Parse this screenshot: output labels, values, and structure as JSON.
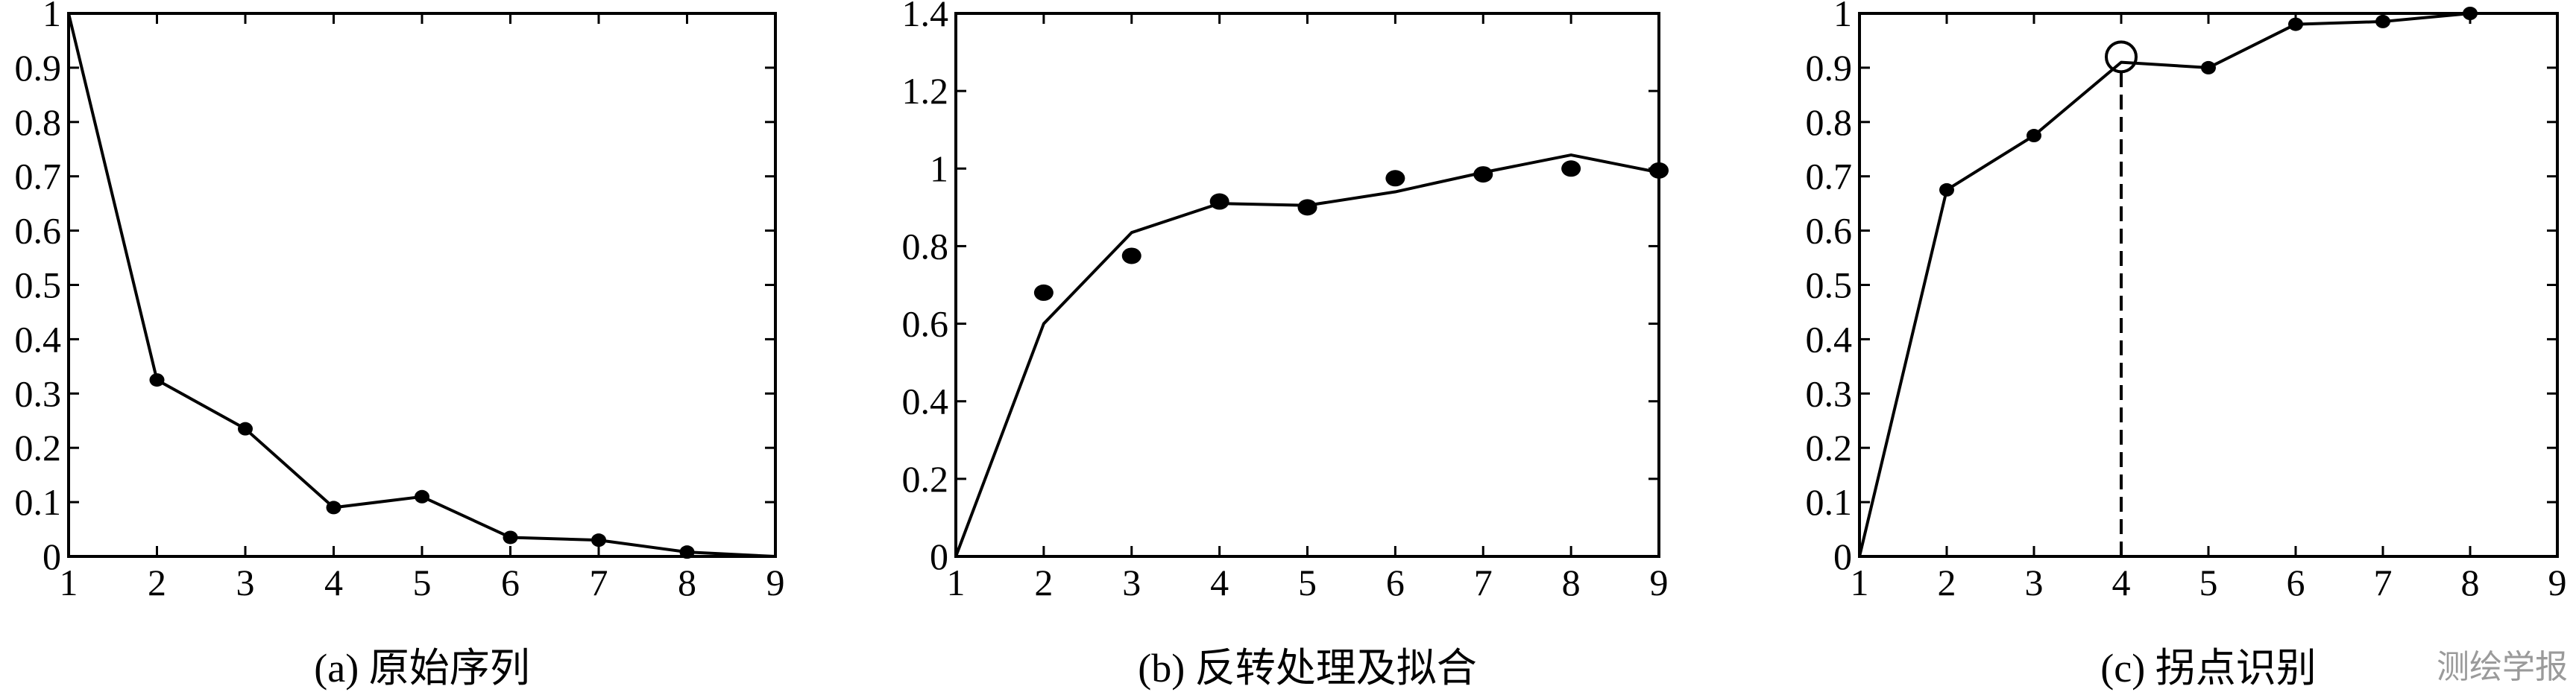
{
  "chart_data": [
    {
      "type": "line",
      "caption": "(a) 原始序列",
      "x": [
        1,
        2,
        3,
        4,
        5,
        6,
        7,
        8,
        9
      ],
      "series": [
        {
          "values": [
            1.0,
            0.325,
            0.235,
            0.09,
            0.11,
            0.035,
            0.03,
            0.008,
            0.0
          ],
          "markers": [
            false,
            true,
            true,
            true,
            true,
            true,
            true,
            true,
            false
          ]
        }
      ],
      "xlim": [
        1,
        9
      ],
      "ylim": [
        0,
        1
      ],
      "xticks": [
        "1",
        "2",
        "3",
        "4",
        "5",
        "6",
        "7",
        "8",
        "9"
      ],
      "yticks": [
        "0",
        "0.1",
        "0.2",
        "0.3",
        "0.4",
        "0.5",
        "0.6",
        "0.7",
        "0.8",
        "0.9",
        "1"
      ],
      "grid": false
    },
    {
      "type": "line+scatter",
      "caption": "(b) 反转处理及拟合",
      "x": [
        1,
        2,
        3,
        4,
        5,
        6,
        7,
        8,
        9
      ],
      "series": [
        {
          "kind": "line",
          "values": [
            0.0,
            0.6,
            0.835,
            0.91,
            0.905,
            0.94,
            0.99,
            1.035,
            0.99
          ]
        },
        {
          "kind": "scatter",
          "x": [
            2,
            3,
            4,
            5,
            6,
            7,
            8,
            9
          ],
          "values": [
            0.68,
            0.775,
            0.915,
            0.9,
            0.975,
            0.985,
            1.0,
            0.995
          ]
        }
      ],
      "xlim": [
        1,
        9
      ],
      "ylim": [
        0,
        1.4
      ],
      "xticks": [
        "1",
        "2",
        "3",
        "4",
        "5",
        "6",
        "7",
        "8",
        "9"
      ],
      "yticks": [
        "0",
        "0.2",
        "0.4",
        "0.6",
        "0.8",
        "1",
        "1.2",
        "1.4"
      ],
      "grid": false
    },
    {
      "type": "line",
      "caption": "(c) 拐点识别",
      "x": [
        1,
        2,
        3,
        4,
        5,
        6,
        7,
        8
      ],
      "series": [
        {
          "values": [
            0.0,
            0.675,
            0.775,
            0.91,
            0.9,
            0.98,
            0.985,
            1.0
          ],
          "markers": [
            false,
            true,
            true,
            false,
            true,
            true,
            true,
            true
          ]
        }
      ],
      "inflection_point": {
        "x": 4,
        "y": 0.92
      },
      "xlim": [
        1,
        9
      ],
      "ylim": [
        0,
        1
      ],
      "xticks": [
        "1",
        "2",
        "3",
        "4",
        "5",
        "6",
        "7",
        "8",
        "9"
      ],
      "yticks": [
        "0",
        "0.1",
        "0.2",
        "0.3",
        "0.4",
        "0.5",
        "0.6",
        "0.7",
        "0.8",
        "0.9",
        "1"
      ],
      "grid": false
    }
  ],
  "watermark": "测绘学报"
}
